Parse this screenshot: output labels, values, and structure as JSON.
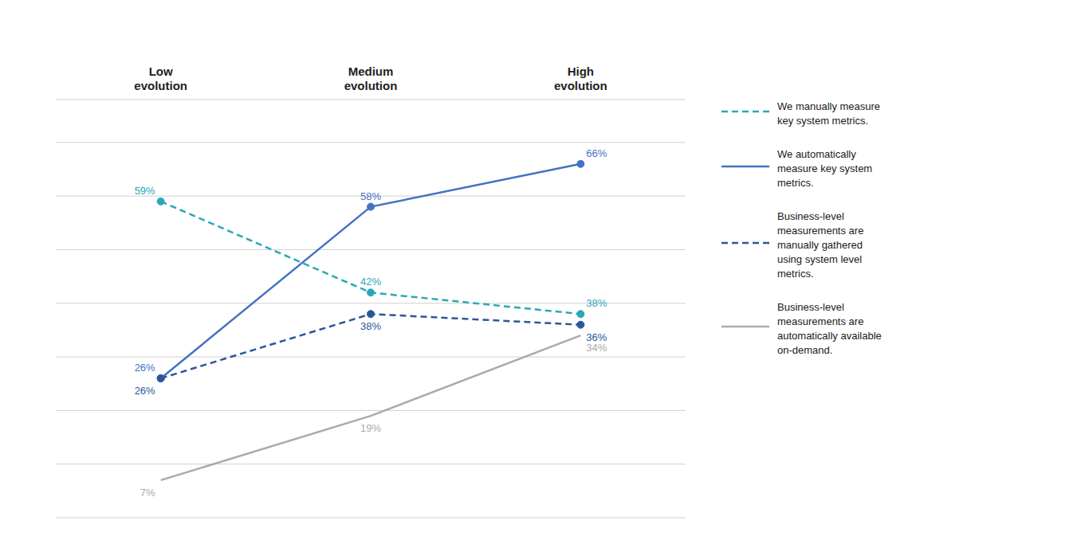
{
  "chart_data": {
    "type": "line",
    "categories": [
      "Low\nevolution",
      "Medium\nevolution",
      "High\nevolution"
    ],
    "series": [
      {
        "name": "We manually measure\nkey system metrics.",
        "color": "#29A8B8",
        "line_style": "dashed",
        "marker": "circle",
        "values": [
          59,
          42,
          38
        ],
        "value_labels": [
          "59%",
          "42%",
          "38%"
        ]
      },
      {
        "name": "We automatically\nmeasure key system\nmetrics.",
        "color": "#4472C4",
        "line_style": "solid",
        "marker": "circle",
        "values": [
          26,
          58,
          66
        ],
        "value_labels": [
          "26%",
          "58%",
          "66%"
        ]
      },
      {
        "name": "Business-level\nmeasurements are\nmanually gathered\nusing system level\nmetrics.",
        "color": "#2B579A",
        "line_style": "dashed",
        "marker": "circle",
        "values": [
          26,
          38,
          36
        ],
        "value_labels": [
          "26%",
          "38%",
          "36%"
        ]
      },
      {
        "name": "Business-level\nmeasurements are\nautomatically available\non-demand.",
        "color": "#AAAAAA",
        "line_style": "solid",
        "marker": "none",
        "values": [
          7,
          19,
          34
        ],
        "value_labels": [
          "7%",
          "19%",
          "34%"
        ]
      }
    ],
    "ylim": [
      0,
      78
    ],
    "yticks": [
      0,
      10,
      20,
      30,
      40,
      50,
      60,
      70
    ],
    "grid": true,
    "tick_labels": "x",
    "legend": "right",
    "data_labels": true
  }
}
